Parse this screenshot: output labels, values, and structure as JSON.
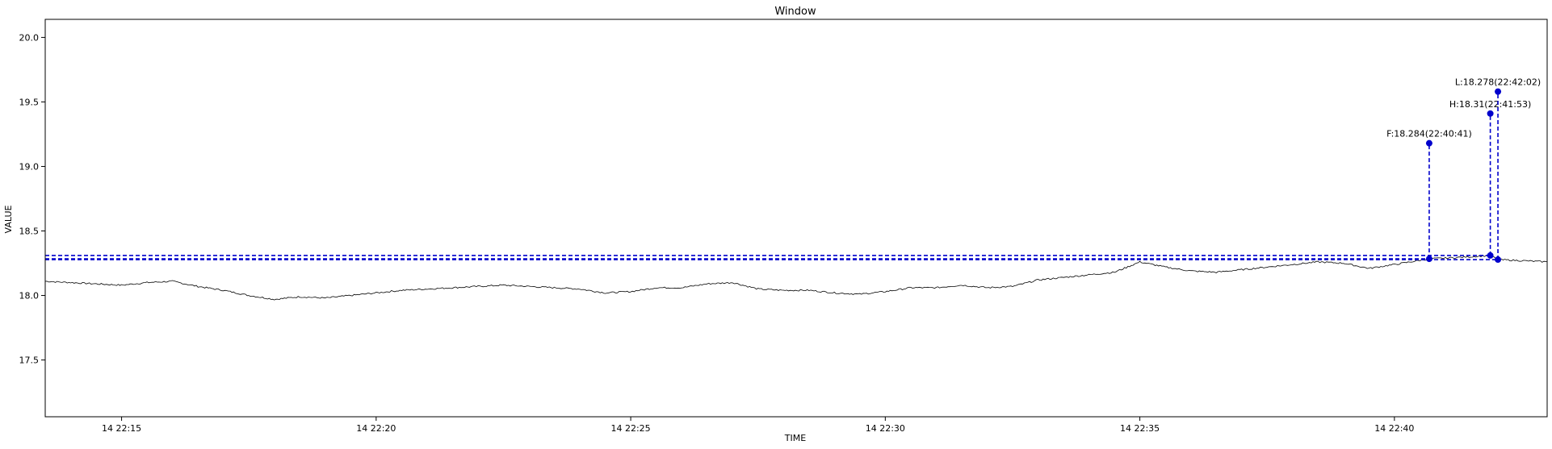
{
  "chart_data": {
    "type": "line",
    "title": "Window",
    "xlabel": "TIME",
    "ylabel": "VALUE",
    "xlim": [
      "14 22:13:30",
      "14 22:43:00"
    ],
    "ylim": [
      17.06,
      20.14
    ],
    "x_ticks": [
      "14 22:15",
      "14 22:20",
      "14 22:25",
      "14 22:30",
      "14 22:35",
      "14 22:40"
    ],
    "y_ticks": [
      "17.5",
      "18.0",
      "18.5",
      "19.0",
      "19.5",
      "20.0"
    ],
    "series": [
      {
        "color": "#000000",
        "points": [
          [
            "22:13:30",
            18.11
          ],
          [
            "22:14:00",
            18.1
          ],
          [
            "22:14:30",
            18.09
          ],
          [
            "22:15:00",
            18.08
          ],
          [
            "22:15:30",
            18.1
          ],
          [
            "22:16:00",
            18.11
          ],
          [
            "22:16:30",
            18.07
          ],
          [
            "22:17:00",
            18.04
          ],
          [
            "22:17:30",
            18.0
          ],
          [
            "22:18:00",
            17.97
          ],
          [
            "22:18:30",
            17.99
          ],
          [
            "22:19:00",
            17.98
          ],
          [
            "22:19:30",
            18.0
          ],
          [
            "22:20:00",
            18.02
          ],
          [
            "22:20:30",
            18.04
          ],
          [
            "22:21:00",
            18.05
          ],
          [
            "22:21:30",
            18.06
          ],
          [
            "22:22:00",
            18.07
          ],
          [
            "22:22:30",
            18.08
          ],
          [
            "22:23:00",
            18.07
          ],
          [
            "22:23:30",
            18.06
          ],
          [
            "22:24:00",
            18.05
          ],
          [
            "22:24:30",
            18.02
          ],
          [
            "22:25:00",
            18.03
          ],
          [
            "22:25:30",
            18.06
          ],
          [
            "22:26:00",
            18.06
          ],
          [
            "22:26:30",
            18.09
          ],
          [
            "22:27:00",
            18.1
          ],
          [
            "22:27:30",
            18.05
          ],
          [
            "22:28:00",
            18.04
          ],
          [
            "22:28:30",
            18.04
          ],
          [
            "22:29:00",
            18.02
          ],
          [
            "22:29:30",
            18.01
          ],
          [
            "22:30:00",
            18.03
          ],
          [
            "22:30:30",
            18.06
          ],
          [
            "22:31:00",
            18.06
          ],
          [
            "22:31:30",
            18.08
          ],
          [
            "22:32:00",
            18.06
          ],
          [
            "22:32:30",
            18.07
          ],
          [
            "22:33:00",
            18.12
          ],
          [
            "22:33:30",
            18.14
          ],
          [
            "22:34:00",
            18.16
          ],
          [
            "22:34:30",
            18.18
          ],
          [
            "22:35:00",
            18.26
          ],
          [
            "22:35:30",
            18.22
          ],
          [
            "22:36:00",
            18.19
          ],
          [
            "22:36:30",
            18.18
          ],
          [
            "22:37:00",
            18.2
          ],
          [
            "22:37:30",
            18.22
          ],
          [
            "22:38:00",
            18.24
          ],
          [
            "22:38:30",
            18.26
          ],
          [
            "22:39:00",
            18.25
          ],
          [
            "22:39:30",
            18.21
          ],
          [
            "22:40:00",
            18.24
          ],
          [
            "22:40:41",
            18.284
          ],
          [
            "22:41:00",
            18.29
          ],
          [
            "22:41:30",
            18.3
          ],
          [
            "22:41:53",
            18.31
          ],
          [
            "22:42:02",
            18.278
          ],
          [
            "22:42:30",
            18.27
          ],
          [
            "22:43:00",
            18.26
          ]
        ]
      }
    ],
    "markers": [
      {
        "label": "F:18.284(22:40:41)",
        "time": "22:40:41",
        "value": 18.284,
        "label_value": 19.18
      },
      {
        "label": "H:18.31(22:41:53)",
        "time": "22:41:53",
        "value": 18.31,
        "label_value": 19.41
      },
      {
        "label": "L:18.278(22:42:02)",
        "time": "22:42:02",
        "value": 18.278,
        "label_value": 19.58
      }
    ],
    "marker_color": "#0000cc",
    "grid": false,
    "legend": false
  }
}
